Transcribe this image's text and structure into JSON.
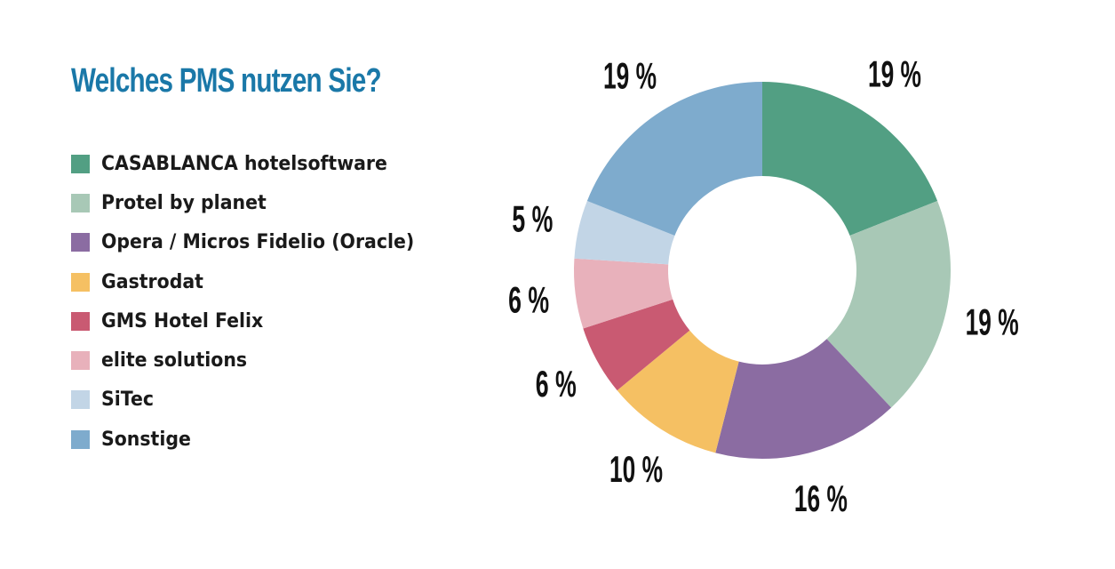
{
  "colors": {
    "title": "#1a78a8"
  },
  "chart_data": {
    "type": "pie",
    "donut": true,
    "title": "Welches PMS nutzen Sie?",
    "legend_position": "left",
    "slices": [
      {
        "name": "CASABLANCA hotelsoftware",
        "value": 19,
        "label": "19 %",
        "color": "#529f83"
      },
      {
        "name": "Protel by planet",
        "value": 19,
        "label": "19 %",
        "color": "#a8c8b6"
      },
      {
        "name": "Opera / Micros Fidelio (Oracle)",
        "value": 16,
        "label": "16 %",
        "color": "#8b6ca2"
      },
      {
        "name": "Gastrodat",
        "value": 10,
        "label": "10 %",
        "color": "#f5c063"
      },
      {
        "name": "GMS Hotel Felix",
        "value": 6,
        "label": "6 %",
        "color": "#c95a72"
      },
      {
        "name": "elite solutions",
        "value": 6,
        "label": "6 %",
        "color": "#e8b1bb"
      },
      {
        "name": "SiTec",
        "value": 5,
        "label": "5 %",
        "color": "#c2d5e6"
      },
      {
        "name": "Sonstige",
        "value": 19,
        "label": "19 %",
        "color": "#7eabcd"
      }
    ]
  }
}
